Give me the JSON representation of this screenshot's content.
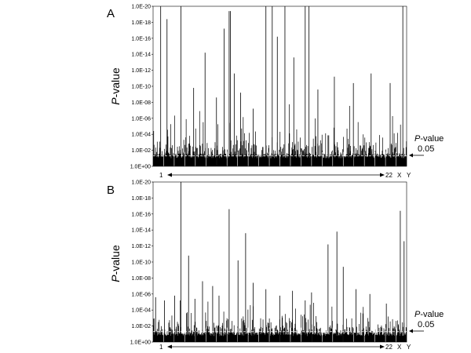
{
  "chart_data": [
    {
      "panel": "A",
      "type": "bar",
      "ylabel_italic": "P",
      "ylabel_rest": "-value",
      "ylim": [
        "1.0E+00",
        "1.0E-20"
      ],
      "yticks": [
        "1.0E-20",
        "1.0E-18",
        "1.0E-16",
        "1.0E-14",
        "1.0E-12",
        "1.0E-10",
        "1.0E-08",
        "1.0E-06",
        "1.0E-04",
        "1.0E-02",
        "1.0E+00"
      ],
      "x_range_labels": [
        "1",
        "22",
        "X",
        "Y"
      ],
      "threshold_label_italic": "P",
      "threshold_label_rest": "-value",
      "threshold_value_label": "0.05",
      "threshold_p": 0.05,
      "peaks_neglog10p": [
        {
          "x": 0.03,
          "v": 20
        },
        {
          "x": 0.055,
          "v": 18.4
        },
        {
          "x": 0.11,
          "v": 20
        },
        {
          "x": 0.16,
          "v": 9.8
        },
        {
          "x": 0.205,
          "v": 14.2
        },
        {
          "x": 0.25,
          "v": 8.6
        },
        {
          "x": 0.28,
          "v": 17.2
        },
        {
          "x": 0.3,
          "v": 19.4
        },
        {
          "x": 0.305,
          "v": 19.4
        },
        {
          "x": 0.32,
          "v": 11.6
        },
        {
          "x": 0.345,
          "v": 9.2
        },
        {
          "x": 0.395,
          "v": 7.2
        },
        {
          "x": 0.445,
          "v": 20
        },
        {
          "x": 0.47,
          "v": 20
        },
        {
          "x": 0.49,
          "v": 16.2
        },
        {
          "x": 0.52,
          "v": 20
        },
        {
          "x": 0.555,
          "v": 13.6
        },
        {
          "x": 0.6,
          "v": 20
        },
        {
          "x": 0.615,
          "v": 20
        },
        {
          "x": 0.65,
          "v": 9.6
        },
        {
          "x": 0.715,
          "v": 11.2
        },
        {
          "x": 0.79,
          "v": 10.4
        },
        {
          "x": 0.86,
          "v": 11.6
        },
        {
          "x": 0.935,
          "v": 10.4
        },
        {
          "x": 0.985,
          "v": 20
        }
      ]
    },
    {
      "panel": "B",
      "type": "bar",
      "ylabel_italic": "P",
      "ylabel_rest": "-value",
      "ylim": [
        "1.0E+00",
        "1.0E-20"
      ],
      "yticks": [
        "1.0E-20",
        "1.0E-18",
        "1.0E-16",
        "1.0E-14",
        "1.0E-12",
        "1.0E-10",
        "1.0E-08",
        "1.0E-06",
        "1.0E-04",
        "1.0E-02",
        "1.0E+00"
      ],
      "x_range_labels": [
        "1",
        "22",
        "X",
        "Y"
      ],
      "threshold_label_italic": "P",
      "threshold_label_rest": "-value",
      "threshold_value_label": "0.05",
      "threshold_p": 0.05,
      "peaks_neglog10p": [
        {
          "x": 0.01,
          "v": 5.6
        },
        {
          "x": 0.045,
          "v": 5.2
        },
        {
          "x": 0.085,
          "v": 5.8
        },
        {
          "x": 0.11,
          "v": 20
        },
        {
          "x": 0.14,
          "v": 10.8
        },
        {
          "x": 0.165,
          "v": 5.4
        },
        {
          "x": 0.195,
          "v": 7.6
        },
        {
          "x": 0.235,
          "v": 7.0
        },
        {
          "x": 0.26,
          "v": 5.8
        },
        {
          "x": 0.3,
          "v": 16.6
        },
        {
          "x": 0.335,
          "v": 10.2
        },
        {
          "x": 0.365,
          "v": 13.6
        },
        {
          "x": 0.395,
          "v": 7.4
        },
        {
          "x": 0.445,
          "v": 6.6
        },
        {
          "x": 0.5,
          "v": 5.8
        },
        {
          "x": 0.55,
          "v": 6.4
        },
        {
          "x": 0.6,
          "v": 5.2
        },
        {
          "x": 0.625,
          "v": 6.2
        },
        {
          "x": 0.69,
          "v": 12.2
        },
        {
          "x": 0.725,
          "v": 13.8
        },
        {
          "x": 0.75,
          "v": 9.4
        },
        {
          "x": 0.8,
          "v": 6.6
        },
        {
          "x": 0.855,
          "v": 6.0
        },
        {
          "x": 0.92,
          "v": 4.8
        },
        {
          "x": 0.975,
          "v": 16.4
        },
        {
          "x": 0.99,
          "v": 12.6
        }
      ]
    }
  ]
}
